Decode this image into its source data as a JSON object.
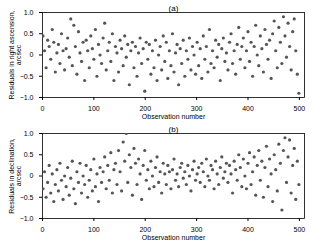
{
  "chart_data": [
    {
      "type": "scatter",
      "title": "(a)",
      "xlabel": "Observation number",
      "ylabel": "Residuals in right ascension, arcsec",
      "color": "#555555",
      "marker": "circle",
      "xlim": [
        0,
        510
      ],
      "xticks": [
        0,
        100,
        200,
        300,
        400,
        500
      ],
      "ylim": [
        -1,
        1
      ],
      "yticks": [
        {
          "value": -1,
          "label": "−1.0"
        },
        {
          "value": -0.5,
          "label": "−0.5"
        },
        0,
        0.5,
        {
          "value": 1,
          "label": "1.0"
        }
      ],
      "x": [
        1,
        4,
        7,
        10,
        13,
        16,
        19,
        22,
        25,
        28,
        31,
        34,
        37,
        40,
        43,
        46,
        49,
        52,
        55,
        58,
        61,
        64,
        67,
        70,
        73,
        76,
        79,
        82,
        85,
        88,
        91,
        94,
        97,
        100,
        103,
        106,
        109,
        112,
        115,
        118,
        121,
        124,
        127,
        130,
        133,
        136,
        139,
        142,
        145,
        148,
        151,
        154,
        157,
        160,
        163,
        166,
        169,
        172,
        175,
        178,
        181,
        184,
        187,
        190,
        193,
        196,
        199,
        202,
        205,
        208,
        211,
        214,
        217,
        220,
        223,
        226,
        229,
        232,
        235,
        238,
        241,
        244,
        247,
        250,
        253,
        256,
        259,
        262,
        265,
        268,
        271,
        274,
        277,
        280,
        283,
        286,
        289,
        292,
        295,
        298,
        301,
        304,
        307,
        310,
        313,
        316,
        319,
        322,
        325,
        328,
        331,
        334,
        337,
        340,
        343,
        346,
        349,
        352,
        355,
        358,
        361,
        364,
        367,
        370,
        373,
        376,
        379,
        382,
        385,
        388,
        391,
        394,
        397,
        400,
        403,
        406,
        409,
        412,
        415,
        418,
        421,
        424,
        427,
        430,
        433,
        436,
        439,
        442,
        445,
        448,
        451,
        454,
        457,
        460,
        463,
        466,
        469,
        472,
        475,
        478,
        481,
        484,
        487,
        490,
        493,
        496,
        499
      ],
      "values": [
        0.45,
        0.1,
        -0.3,
        0.35,
        0.2,
        -0.1,
        0.6,
        0.3,
        -0.4,
        0.05,
        0.25,
        -0.2,
        0.5,
        0.1,
        -0.35,
        0.15,
        0.4,
        -0.05,
        0.85,
        -0.25,
        0.7,
        0.2,
        -0.45,
        0.55,
        0.05,
        -0.15,
        0.3,
        -0.6,
        0.35,
        0.1,
        -0.3,
        0.45,
        0.15,
        -0.1,
        0.6,
        -0.5,
        0.25,
        0.0,
        -0.2,
        0.4,
        0.75,
        -0.35,
        0.1,
        0.3,
        -0.15,
        0.5,
        -0.6,
        0.2,
        0.05,
        -0.4,
        0.35,
        0.15,
        -0.25,
        0.45,
        -0.05,
        0.25,
        -0.7,
        0.1,
        0.3,
        -0.3,
        0.2,
        -0.5,
        0.05,
        0.4,
        -0.2,
        0.15,
        -0.85,
        0.3,
        -0.1,
        0.25,
        -0.45,
        0.1,
        -0.3,
        0.35,
        -0.6,
        0.0,
        0.2,
        -0.35,
        0.45,
        -0.15,
        0.3,
        -0.55,
        0.1,
        -0.25,
        0.5,
        -0.4,
        0.05,
        0.25,
        -0.7,
        0.15,
        -0.2,
        0.35,
        -0.5,
        0.1,
        -0.1,
        0.4,
        -0.35,
        0.2,
        0.0,
        -0.45,
        0.3,
        -0.25,
        0.15,
        -0.55,
        0.45,
        -0.1,
        0.2,
        -0.4,
        0.6,
        -0.2,
        0.1,
        -0.3,
        0.35,
        -0.05,
        0.25,
        -0.6,
        0.15,
        0.4,
        -0.15,
        0.05,
        -0.35,
        0.3,
        0.5,
        -0.2,
        0.1,
        -0.45,
        0.25,
        0.65,
        -0.1,
        0.2,
        0.4,
        -0.3,
        0.1,
        0.55,
        -0.15,
        0.3,
        -0.5,
        0.2,
        0.7,
        0.0,
        -0.25,
        0.45,
        0.15,
        -0.4,
        0.6,
        0.25,
        -0.1,
        0.35,
        -0.55,
        0.5,
        0.8,
        0.1,
        -0.3,
        0.65,
        0.3,
        -0.2,
        0.9,
        0.45,
        -0.05,
        0.75,
        0.2,
        -0.35,
        0.55,
        0.85,
        0.1,
        -0.45,
        -0.9
      ]
    },
    {
      "type": "scatter",
      "title": "(b)",
      "xlabel": "Observation number",
      "ylabel": "Residuals in declination, arcsec",
      "color": "#555555",
      "marker": "circle",
      "xlim": [
        0,
        510
      ],
      "xticks": [
        0,
        100,
        200,
        300,
        400,
        500
      ],
      "ylim": [
        -1,
        1
      ],
      "yticks": [
        {
          "value": -1,
          "label": "−1.0"
        },
        {
          "value": -0.5,
          "label": "−0.5"
        },
        0,
        0.5,
        {
          "value": 1,
          "label": "1.0"
        }
      ],
      "x": [
        1,
        4,
        7,
        10,
        13,
        16,
        19,
        22,
        25,
        28,
        31,
        34,
        37,
        40,
        43,
        46,
        49,
        52,
        55,
        58,
        61,
        64,
        67,
        70,
        73,
        76,
        79,
        82,
        85,
        88,
        91,
        94,
        97,
        100,
        103,
        106,
        109,
        112,
        115,
        118,
        121,
        124,
        127,
        130,
        133,
        136,
        139,
        142,
        145,
        148,
        151,
        154,
        157,
        160,
        163,
        166,
        169,
        172,
        175,
        178,
        181,
        184,
        187,
        190,
        193,
        196,
        199,
        202,
        205,
        208,
        211,
        214,
        217,
        220,
        223,
        226,
        229,
        232,
        235,
        238,
        241,
        244,
        247,
        250,
        253,
        256,
        259,
        262,
        265,
        268,
        271,
        274,
        277,
        280,
        283,
        286,
        289,
        292,
        295,
        298,
        301,
        304,
        307,
        310,
        313,
        316,
        319,
        322,
        325,
        328,
        331,
        334,
        337,
        340,
        343,
        346,
        349,
        352,
        355,
        358,
        361,
        364,
        367,
        370,
        373,
        376,
        379,
        382,
        385,
        388,
        391,
        394,
        397,
        400,
        403,
        406,
        409,
        412,
        415,
        418,
        421,
        424,
        427,
        430,
        433,
        436,
        439,
        442,
        445,
        448,
        451,
        454,
        457,
        460,
        463,
        466,
        469,
        472,
        475,
        478,
        481,
        484,
        487,
        490,
        493,
        496,
        499
      ],
      "values": [
        -0.3,
        0.1,
        -0.5,
        -0.15,
        0.25,
        -0.4,
        0.05,
        -0.6,
        -0.2,
        0.15,
        -0.35,
        0.3,
        -0.1,
        -0.55,
        0.0,
        -0.25,
        0.2,
        -0.45,
        -0.05,
        0.35,
        -0.3,
        -0.65,
        0.1,
        -0.15,
        0.3,
        -0.4,
        0.0,
        -0.2,
        0.25,
        -0.5,
        -0.1,
        0.15,
        -0.35,
        0.4,
        -0.25,
        0.05,
        -0.6,
        0.2,
        -0.15,
        0.1,
        0.45,
        -0.3,
        0.25,
        -0.1,
        0.55,
        -0.4,
        0.15,
        0.3,
        -0.2,
        0.6,
        0.1,
        -0.35,
        0.8,
        0.35,
        1.0,
        -0.15,
        0.5,
        0.2,
        -0.45,
        0.65,
        0.3,
        -0.2,
        0.4,
        0.05,
        -0.55,
        0.25,
        0.6,
        -0.1,
        0.15,
        -0.3,
        0.35,
        0.0,
        -0.25,
        0.2,
        0.45,
        -0.15,
        0.1,
        -0.4,
        0.3,
        0.05,
        -0.2,
        0.25,
        0.1,
        -0.3,
        0.15,
        0.4,
        -0.1,
        0.05,
        -0.25,
        0.2,
        0.3,
        -0.05,
        0.1,
        -0.2,
        0.25,
        0.0,
        -0.35,
        0.15,
        0.35,
        -0.1,
        0.05,
        0.2,
        -0.15,
        0.3,
        0.1,
        -0.25,
        0.4,
        0.0,
        -0.1,
        0.25,
        0.15,
        -0.3,
        0.35,
        0.05,
        -0.2,
        0.2,
        0.45,
        -0.05,
        0.1,
        0.3,
        -0.15,
        0.25,
        0.05,
        -0.4,
        0.35,
        0.15,
        -0.1,
        0.5,
        0.2,
        -0.25,
        0.4,
        0.0,
        -0.3,
        0.3,
        0.55,
        -0.2,
        0.1,
        0.45,
        -0.45,
        0.25,
        0.6,
        -0.1,
        0.35,
        -0.5,
        0.2,
        0.7,
        -0.25,
        0.4,
        0.05,
        -0.6,
        0.5,
        0.15,
        -0.35,
        0.75,
        0.3,
        -0.8,
        0.6,
        0.9,
        -0.15,
        0.45,
        0.85,
        -0.4,
        0.25,
        0.65,
        -0.55,
        0.35,
        -0.2
      ]
    }
  ]
}
